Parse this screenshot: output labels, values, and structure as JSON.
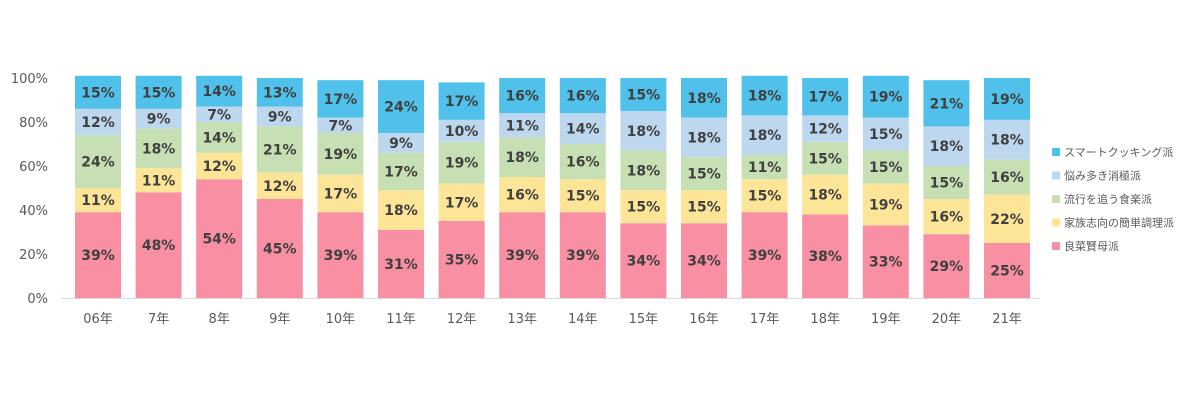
{
  "chart_data": {
    "type": "bar",
    "stacked": true,
    "categories": [
      "06年",
      "07年",
      "08年",
      "09年",
      "10年",
      "11年",
      "12年",
      "13年",
      "14年",
      "15年",
      "16年",
      "17年",
      "18年",
      "19年",
      "20年",
      "21年"
    ],
    "x_tick_labels": [
      "06年",
      "7年",
      "8年",
      "9年",
      "10年",
      "11年",
      "12年",
      "13年",
      "14年",
      "15年",
      "16年",
      "17年",
      "18年",
      "19年",
      "20年",
      "21年"
    ],
    "series": [
      {
        "name": "良菜賢母派",
        "color": "#f98fa3",
        "values": [
          39,
          48,
          54,
          45,
          39,
          31,
          35,
          39,
          39,
          34,
          34,
          39,
          38,
          33,
          29,
          25
        ]
      },
      {
        "name": "家族志向の簡単調理派",
        "color": "#fde598",
        "values": [
          11,
          11,
          12,
          12,
          17,
          18,
          17,
          16,
          15,
          15,
          15,
          15,
          18,
          19,
          16,
          22
        ]
      },
      {
        "name": "流行を追う食楽派",
        "color": "#c6e0b4",
        "values": [
          24,
          18,
          14,
          21,
          19,
          17,
          19,
          18,
          16,
          18,
          15,
          11,
          15,
          15,
          15,
          16
        ]
      },
      {
        "name": "悩み多き消極派",
        "color": "#bdd7ee",
        "values": [
          12,
          9,
          7,
          9,
          7,
          9,
          10,
          11,
          14,
          18,
          18,
          18,
          12,
          15,
          18,
          18
        ]
      },
      {
        "name": "スマートクッキング派",
        "color": "#4fc1ea",
        "values": [
          15,
          15,
          14,
          13,
          17,
          24,
          17,
          16,
          16,
          15,
          18,
          18,
          17,
          19,
          21,
          19
        ]
      }
    ],
    "legend_order": [
      "スマートクッキング派",
      "悩み多き消極派",
      "流行を追う食楽派",
      "家族志向の簡単調理派",
      "良菜賢母派"
    ],
    "legend_position": "right",
    "y_tick_labels": [
      "0%",
      "20%",
      "40%",
      "60%",
      "80%",
      "100%"
    ],
    "ylim": [
      0,
      100
    ],
    "grid": false,
    "value_suffix": "%"
  }
}
